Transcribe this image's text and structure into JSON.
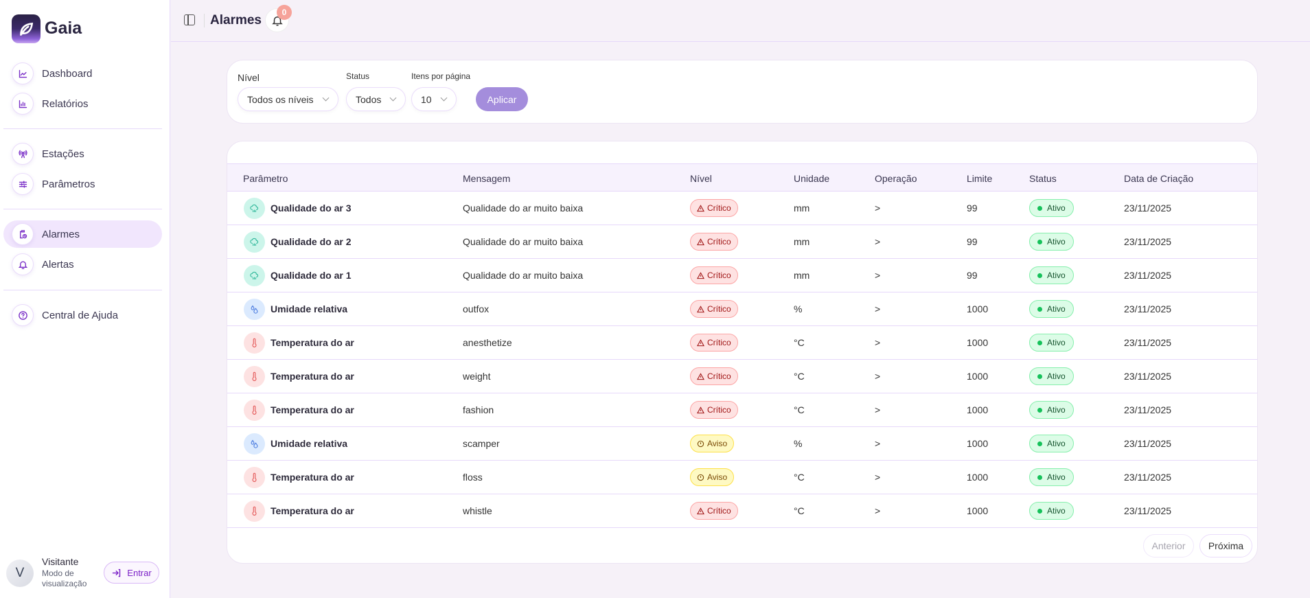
{
  "app": {
    "name": "Gaia"
  },
  "sidebar": {
    "items": [
      {
        "label": "Dashboard",
        "icon": "chart-line-icon"
      },
      {
        "label": "Relatórios",
        "icon": "bar-chart-icon"
      },
      {
        "label": "Estações",
        "icon": "antenna-icon"
      },
      {
        "label": "Parâmetros",
        "icon": "sliders-icon"
      },
      {
        "label": "Alarmes",
        "icon": "clipboard-clock-icon",
        "active": true
      },
      {
        "label": "Alertas",
        "icon": "bell-icon"
      },
      {
        "label": "Central de Ajuda",
        "icon": "help-circle-icon"
      }
    ],
    "user": {
      "initial": "V",
      "name": "Visitante",
      "mode": "Modo de visualização",
      "login_label": "Entrar"
    }
  },
  "header": {
    "title": "Alarmes",
    "notification_count": "0"
  },
  "filters": {
    "level_label": "Nível",
    "level_value": "Todos os níveis",
    "status_label": "Status",
    "status_value": "Todos",
    "per_page_label": "Itens por página",
    "per_page_value": "10",
    "apply_label": "Aplicar"
  },
  "table": {
    "columns": [
      "Parâmetro",
      "Mensagem",
      "Nível",
      "Unidade",
      "Operação",
      "Limite",
      "Status",
      "Data de Criação"
    ],
    "rows": [
      {
        "param": "Qualidade do ar 3",
        "type": "air",
        "message": "Qualidade do ar muito baixa",
        "level": "Crítico",
        "unit": "mm",
        "op": ">",
        "limit": "99",
        "status": "Ativo",
        "date": "23/11/2025"
      },
      {
        "param": "Qualidade do ar 2",
        "type": "air",
        "message": "Qualidade do ar muito baixa",
        "level": "Crítico",
        "unit": "mm",
        "op": ">",
        "limit": "99",
        "status": "Ativo",
        "date": "23/11/2025"
      },
      {
        "param": "Qualidade do ar 1",
        "type": "air",
        "message": "Qualidade do ar muito baixa",
        "level": "Crítico",
        "unit": "mm",
        "op": ">",
        "limit": "99",
        "status": "Ativo",
        "date": "23/11/2025"
      },
      {
        "param": "Umidade relativa",
        "type": "humidity",
        "message": "outfox",
        "level": "Crítico",
        "unit": "%",
        "op": ">",
        "limit": "1000",
        "status": "Ativo",
        "date": "23/11/2025"
      },
      {
        "param": "Temperatura do ar",
        "type": "temp",
        "message": "anesthetize",
        "level": "Crítico",
        "unit": "°C",
        "op": ">",
        "limit": "1000",
        "status": "Ativo",
        "date": "23/11/2025"
      },
      {
        "param": "Temperatura do ar",
        "type": "temp",
        "message": "weight",
        "level": "Crítico",
        "unit": "°C",
        "op": ">",
        "limit": "1000",
        "status": "Ativo",
        "date": "23/11/2025"
      },
      {
        "param": "Temperatura do ar",
        "type": "temp",
        "message": "fashion",
        "level": "Crítico",
        "unit": "°C",
        "op": ">",
        "limit": "1000",
        "status": "Ativo",
        "date": "23/11/2025"
      },
      {
        "param": "Umidade relativa",
        "type": "humidity",
        "message": "scamper",
        "level": "Aviso",
        "unit": "%",
        "op": ">",
        "limit": "1000",
        "status": "Ativo",
        "date": "23/11/2025"
      },
      {
        "param": "Temperatura do ar",
        "type": "temp",
        "message": "floss",
        "level": "Aviso",
        "unit": "°C",
        "op": ">",
        "limit": "1000",
        "status": "Ativo",
        "date": "23/11/2025"
      },
      {
        "param": "Temperatura do ar",
        "type": "temp",
        "message": "whistle",
        "level": "Crítico",
        "unit": "°C",
        "op": ">",
        "limit": "1000",
        "status": "Ativo",
        "date": "23/11/2025"
      }
    ]
  },
  "pagination": {
    "prev_label": "Anterior",
    "next_label": "Próxima"
  },
  "colors": {
    "accent": "#7a2fc7",
    "apply": "#a48ddc",
    "critical": "#fee2e2",
    "warning": "#fef9c3",
    "active": "#dcfce7"
  }
}
